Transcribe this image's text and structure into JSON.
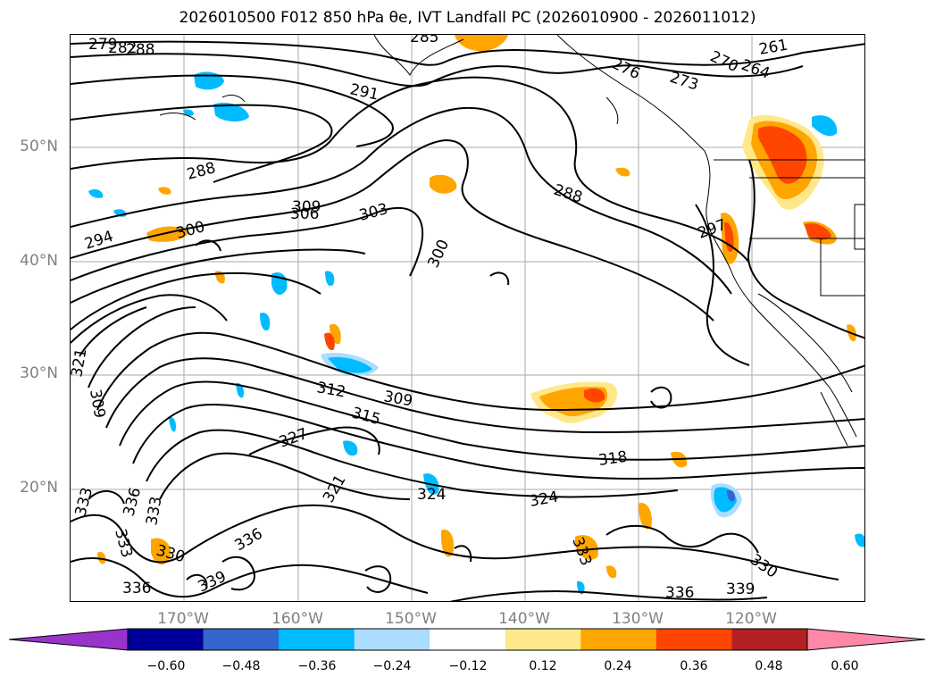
{
  "title": "2026010500 F012 850 hPa θe, IVT Landfall PC (2026010900 - 2026011012)",
  "map": {
    "lat_labels": [
      "50°N",
      "40°N",
      "30°N",
      "20°N"
    ],
    "lon_labels": [
      "170°W",
      "160°W",
      "150°W",
      "140°W",
      "130°W",
      "120°W"
    ],
    "contour_labels": [
      "279",
      "282",
      "288",
      "285",
      "291",
      "276",
      "273",
      "270",
      "264",
      "261",
      "288",
      "288",
      "294",
      "300",
      "309",
      "306",
      "303",
      "300",
      "297",
      "321",
      "309",
      "312",
      "309",
      "315",
      "327",
      "318",
      "333",
      "336",
      "333",
      "333",
      "330",
      "336",
      "336",
      "339",
      "324",
      "324",
      "333",
      "330",
      "336",
      "339",
      "321"
    ]
  },
  "colorbar": {
    "ticks": [
      "−0.60",
      "−0.48",
      "−0.36",
      "−0.24",
      "−0.12",
      "0.12",
      "0.24",
      "0.36",
      "0.48",
      "0.60"
    ],
    "colors": [
      "#9933cc",
      "#000099",
      "#3366cc",
      "#00bbff",
      "#aaddff",
      "#ffffff",
      "#ffe88a",
      "#ffa500",
      "#ff4500",
      "#b22222",
      "#ff88aa"
    ]
  }
}
